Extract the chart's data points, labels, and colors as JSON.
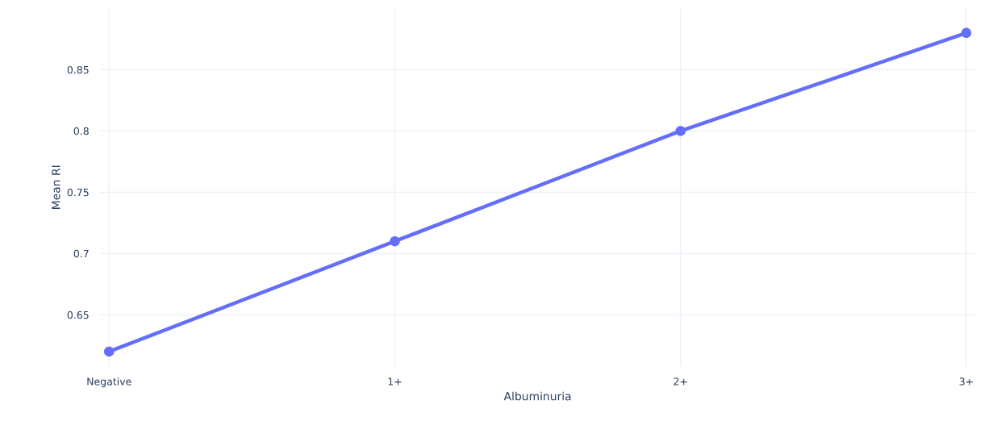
{
  "chart_data": {
    "type": "line",
    "xlabel": "Albuminuria",
    "ylabel": "Mean RI",
    "categories": [
      "Negative",
      "1+",
      "2+",
      "3+"
    ],
    "series": [
      {
        "color": "#636efa",
        "values": [
          0.62,
          0.71,
          0.8,
          0.88
        ]
      }
    ],
    "ylim": [
      0.608,
      0.9
    ],
    "yticks": [
      0.65,
      {
        "value": 0.7,
        "label": "0.7"
      },
      0.75,
      {
        "value": 0.8,
        "label": "0.8"
      },
      0.85
    ],
    "grid": true,
    "marker": "circle",
    "line_style": "solid"
  }
}
